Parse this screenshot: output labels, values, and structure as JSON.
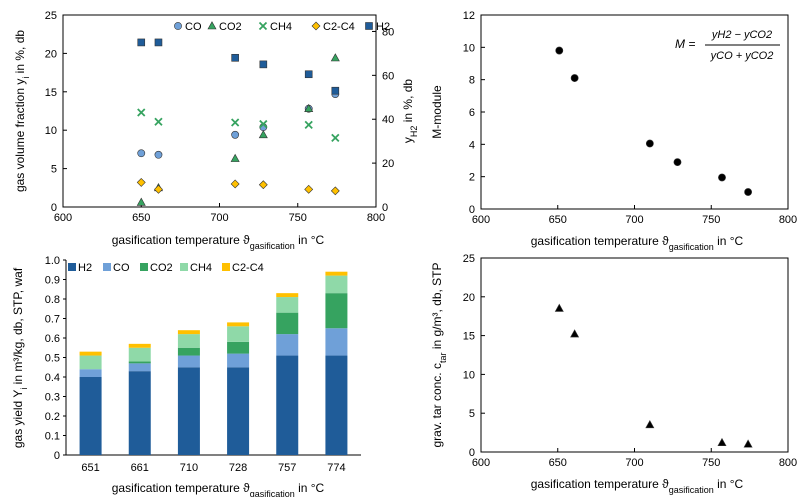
{
  "colors": {
    "H2": "#1f5c99",
    "CO": "#6fa0d8",
    "CO2": "#36a360",
    "CH4": "#8fd9a8",
    "C2C4": "#ffc000",
    "marker": "#000000",
    "axis": "#000000"
  },
  "chart_data": [
    {
      "type": "scatter",
      "xlabel": "gasification temperature ϑgasification in °C",
      "ylabel": "gas volume fraction yi in %, db",
      "y2label": "yH2 in %, db",
      "xlim": [
        600,
        800
      ],
      "ylim": [
        0,
        25
      ],
      "y2lim": [
        0,
        87.5
      ],
      "xticks": [
        "600",
        "650",
        "700",
        "750",
        "800"
      ],
      "yticks": [
        "0",
        "5",
        "10",
        "15",
        "20",
        "25"
      ],
      "y2ticks": [
        "0",
        "20",
        "40",
        "60",
        "80"
      ],
      "legend": [
        "CO",
        "CO2",
        "CH4",
        "C2-C4",
        "H2"
      ],
      "series": [
        {
          "name": "CO",
          "axis": "left",
          "marker": "circle",
          "x": [
            650,
            661,
            710,
            728,
            757,
            774
          ],
          "y": [
            7.0,
            6.8,
            9.4,
            10.4,
            12.8,
            14.7
          ]
        },
        {
          "name": "CO2",
          "axis": "left",
          "marker": "triangle",
          "x": [
            650,
            661,
            710,
            728,
            757,
            774
          ],
          "y": [
            0.6,
            2.5,
            6.3,
            9.4,
            12.8,
            19.4
          ]
        },
        {
          "name": "CH4",
          "axis": "left",
          "marker": "x",
          "x": [
            650,
            661,
            710,
            728,
            757,
            774
          ],
          "y": [
            12.3,
            11.1,
            11.0,
            10.8,
            10.7,
            9.0
          ]
        },
        {
          "name": "C2-C4",
          "axis": "left",
          "marker": "diamond",
          "x": [
            650,
            661,
            710,
            728,
            757,
            774
          ],
          "y": [
            3.2,
            2.3,
            3.0,
            2.9,
            2.3,
            2.1
          ]
        },
        {
          "name": "H2",
          "axis": "right",
          "marker": "square",
          "x": [
            650,
            661,
            710,
            728,
            757,
            774
          ],
          "y": [
            75,
            75,
            68,
            65,
            60.5,
            53
          ]
        }
      ]
    },
    {
      "type": "scatter",
      "xlabel": "gasification temperature ϑgasification in °C",
      "ylabel": "M-module",
      "xlim": [
        600,
        800
      ],
      "ylim": [
        0,
        12
      ],
      "xticks": [
        "600",
        "650",
        "700",
        "750",
        "800"
      ],
      "yticks": [
        "0",
        "2",
        "4",
        "6",
        "8",
        "10",
        "12"
      ],
      "formula": {
        "lhs": "M =",
        "num": "yH2 − yCO2",
        "den": "yCO + yCO2"
      },
      "series": [
        {
          "marker": "circle",
          "x": [
            651,
            661,
            710,
            728,
            757,
            774
          ],
          "y": [
            9.8,
            8.1,
            4.05,
            2.9,
            1.95,
            1.05
          ]
        }
      ]
    },
    {
      "type": "bar",
      "stacked": true,
      "xlabel": "gasification temperature ϑgasification in °C",
      "ylabel": "gas yield Yi in m³/kg, db, STP, waf",
      "ylim": [
        0,
        1.0
      ],
      "yticks": [
        "0",
        "0.1",
        "0.2",
        "0.3",
        "0.4",
        "0.5",
        "0.6",
        "0.7",
        "0.8",
        "0.9",
        "1.0"
      ],
      "categories": [
        "651",
        "661",
        "710",
        "728",
        "757",
        "774"
      ],
      "legend": [
        "H2",
        "CO",
        "CO2",
        "CH4",
        "C2-C4"
      ],
      "series": [
        {
          "name": "H2",
          "values": [
            0.4,
            0.43,
            0.45,
            0.45,
            0.51,
            0.51
          ]
        },
        {
          "name": "CO",
          "values": [
            0.04,
            0.04,
            0.06,
            0.07,
            0.11,
            0.14
          ]
        },
        {
          "name": "CO2",
          "values": [
            0.0,
            0.01,
            0.04,
            0.06,
            0.11,
            0.18
          ]
        },
        {
          "name": "CH4",
          "values": [
            0.07,
            0.07,
            0.07,
            0.08,
            0.08,
            0.09
          ]
        },
        {
          "name": "C2-C4",
          "values": [
            0.02,
            0.02,
            0.02,
            0.02,
            0.02,
            0.02
          ]
        }
      ]
    },
    {
      "type": "scatter",
      "xlabel": "gasification temperature ϑgasification in °C",
      "ylabel": "grav. tar conc. ctar in g/m³, db, STP",
      "xlim": [
        600,
        800
      ],
      "ylim": [
        0,
        25
      ],
      "xticks": [
        "600",
        "650",
        "700",
        "750",
        "800"
      ],
      "yticks": [
        "0",
        "5",
        "10",
        "15",
        "20",
        "25"
      ],
      "series": [
        {
          "marker": "triangle",
          "x": [
            651,
            661,
            710,
            757,
            774
          ],
          "y": [
            18.5,
            15.2,
            3.5,
            1.2,
            1.0
          ]
        }
      ]
    }
  ]
}
